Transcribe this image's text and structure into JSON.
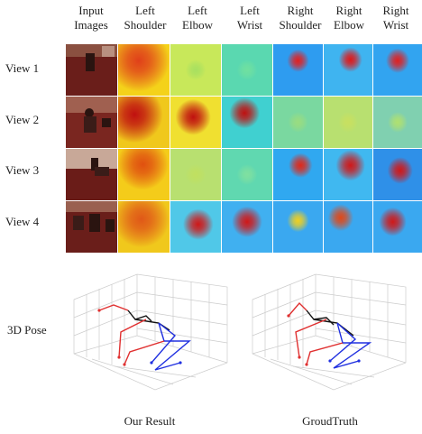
{
  "columns": [
    {
      "line1": "Input",
      "line2": "Images"
    },
    {
      "line1": "Left",
      "line2": "Shoulder"
    },
    {
      "line1": "Left",
      "line2": "Elbow"
    },
    {
      "line1": "Left",
      "line2": "Wrist"
    },
    {
      "line1": "Right",
      "line2": "Shoulder"
    },
    {
      "line1": "Right",
      "line2": "Elbow"
    },
    {
      "line1": "Right",
      "line2": "Wrist"
    }
  ],
  "rows": [
    {
      "label": "View 1"
    },
    {
      "label": "View 2"
    },
    {
      "label": "View 3"
    },
    {
      "label": "View 4"
    }
  ],
  "pose_label": "3D Pose",
  "captions": {
    "left": "Our Result",
    "right": "GroudTruth"
  },
  "colors": {
    "left_limb": "#e03030",
    "right_limb": "#2030e0",
    "torso": "#111111",
    "grid": "#cccccc"
  },
  "heatmaps": [
    [
      {
        "bg": "#f4d21a",
        "peak": "#e0401a",
        "spread": 0.6
      },
      {
        "bg": "#c8e85a",
        "peak": "#a8e060",
        "spread": 0.2
      },
      {
        "bg": "#5ad8b0",
        "peak": "#70e0a0",
        "spread": 0.2
      },
      {
        "bg": "#2e9cf0",
        "peak": "#e22020",
        "spread": 0.22
      },
      {
        "bg": "#3fb4f0",
        "peak": "#e01818",
        "spread": 0.24
      },
      {
        "bg": "#32a4f0",
        "peak": "#e02020",
        "spread": 0.24
      }
    ],
    [
      {
        "bg": "#f0c81c",
        "peak": "#c01010",
        "spread": 0.55
      },
      {
        "bg": "#f0e030",
        "peak": "#c01010",
        "spread": 0.35
      },
      {
        "bg": "#40d0d0",
        "peak": "#c01010",
        "spread": 0.3
      },
      {
        "bg": "#7ad8a0",
        "peak": "#9adc80",
        "spread": 0.2
      },
      {
        "bg": "#b8e070",
        "peak": "#c8e060",
        "spread": 0.2
      },
      {
        "bg": "#80d0b0",
        "peak": "#b0e070",
        "spread": 0.2
      }
    ],
    [
      {
        "bg": "#f4cc1a",
        "peak": "#e05010",
        "spread": 0.5
      },
      {
        "bg": "#b8e070",
        "peak": "#c0e060",
        "spread": 0.2
      },
      {
        "bg": "#60d8b0",
        "peak": "#80e0a0",
        "spread": 0.2
      },
      {
        "bg": "#30a8f0",
        "peak": "#e02818",
        "spread": 0.24
      },
      {
        "bg": "#40b8f0",
        "peak": "#d01818",
        "spread": 0.3
      },
      {
        "bg": "#2f90e8",
        "peak": "#d01818",
        "spread": 0.26
      }
    ],
    [
      {
        "bg": "#f0c81c",
        "peak": "#e05818",
        "spread": 0.55
      },
      {
        "bg": "#50c8e8",
        "peak": "#d01818",
        "spread": 0.3
      },
      {
        "bg": "#40b0f0",
        "peak": "#d01818",
        "spread": 0.3
      },
      {
        "bg": "#3aa8f0",
        "peak": "#f0d020",
        "spread": 0.22
      },
      {
        "bg": "#3aa8f0",
        "peak": "#e04818",
        "spread": 0.26
      },
      {
        "bg": "#3aa8f0",
        "peak": "#d01818",
        "spread": 0.28
      }
    ]
  ]
}
